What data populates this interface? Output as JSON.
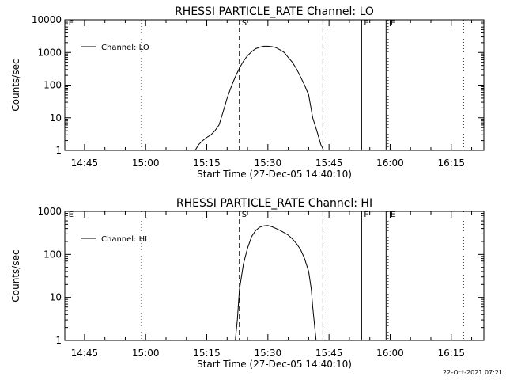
{
  "footer": {
    "timestamp": "22-Oct-2021 07:21"
  },
  "chart_data": [
    {
      "type": "line",
      "title": "RHESSI PARTICLE_RATE Channel: LO",
      "xlabel": "Start Time (27-Dec-05 14:40:10)",
      "ylabel": "Counts/sec",
      "y_scale": "log",
      "ylim": [
        1,
        10000
      ],
      "y_ticks": [
        {
          "value": 1,
          "label": "1"
        },
        {
          "value": 10,
          "label": "10"
        },
        {
          "value": 100,
          "label": "100"
        },
        {
          "value": 1000,
          "label": "1000"
        },
        {
          "value": 10000,
          "label": "10000"
        }
      ],
      "xlim": [
        "14:40:10",
        "16:23:00"
      ],
      "x_ticks": [
        "14:45",
        "15:00",
        "15:15",
        "15:30",
        "15:45",
        "16:00",
        "16:15"
      ],
      "legend": {
        "placement": "top-left",
        "entries": [
          "Channel: LO"
        ]
      },
      "series": [
        {
          "name": "Channel: LO",
          "x": [
            "15:12:10",
            "15:13:00",
            "15:14:00",
            "15:15:00",
            "15:16:00",
            "15:17:00",
            "15:18:00",
            "15:19:00",
            "15:20:00",
            "15:21:00",
            "15:22:00",
            "15:23:00",
            "15:24:00",
            "15:25:00",
            "15:26:00",
            "15:27:00",
            "15:28:00",
            "15:29:00",
            "15:30:00",
            "15:31:00",
            "15:32:00",
            "15:33:00",
            "15:34:00",
            "15:35:00",
            "15:36:00",
            "15:37:00",
            "15:38:00",
            "15:39:00",
            "15:40:00",
            "15:41:00",
            "15:42:00",
            "15:43:00",
            "15:43:40"
          ],
          "values": [
            1,
            1.5,
            2,
            2.5,
            3,
            4,
            6,
            15,
            40,
            90,
            180,
            330,
            540,
            800,
            1050,
            1300,
            1450,
            1550,
            1550,
            1500,
            1400,
            1200,
            1000,
            700,
            500,
            320,
            180,
            100,
            50,
            10,
            4,
            1.5,
            1
          ]
        }
      ],
      "annotations": [
        {
          "type": "vline",
          "style": "dotted",
          "x": "14:59:00",
          "label": ""
        },
        {
          "type": "vline",
          "style": "dashed",
          "x": "15:23:00",
          "label": "S"
        },
        {
          "type": "vline",
          "style": "dashed",
          "x": "15:43:30",
          "label": ""
        },
        {
          "type": "vline",
          "style": "solid",
          "x": "15:53:00",
          "label": "F"
        },
        {
          "type": "vline",
          "style": "solid",
          "x": "15:59:00",
          "label": ""
        },
        {
          "type": "vline",
          "style": "dotted",
          "x": "15:59:30",
          "label": "E"
        },
        {
          "type": "vline",
          "style": "dotted",
          "x": "16:18:00",
          "label": ""
        },
        {
          "type": "text",
          "x": "14:40:30",
          "label": "E"
        }
      ]
    },
    {
      "type": "line",
      "title": "RHESSI PARTICLE_RATE Channel: HI",
      "xlabel": "Start Time (27-Dec-05 14:40:10)",
      "ylabel": "Counts/sec",
      "y_scale": "log",
      "ylim": [
        1,
        1000
      ],
      "y_ticks": [
        {
          "value": 1,
          "label": "1"
        },
        {
          "value": 10,
          "label": "10"
        },
        {
          "value": 100,
          "label": "100"
        },
        {
          "value": 1000,
          "label": "1000"
        }
      ],
      "xlim": [
        "14:40:10",
        "16:23:00"
      ],
      "x_ticks": [
        "14:45",
        "15:00",
        "15:15",
        "15:30",
        "15:45",
        "16:00",
        "16:15"
      ],
      "legend": {
        "placement": "top-left",
        "entries": [
          "Channel: HI"
        ]
      },
      "series": [
        {
          "name": "Channel: HI",
          "x": [
            "15:22:00",
            "15:22:30",
            "15:23:00",
            "15:24:00",
            "15:25:00",
            "15:26:00",
            "15:27:00",
            "15:28:00",
            "15:29:00",
            "15:30:00",
            "15:31:00",
            "15:32:00",
            "15:33:00",
            "15:34:00",
            "15:35:00",
            "15:36:00",
            "15:37:00",
            "15:38:00",
            "15:39:00",
            "15:40:00",
            "15:40:40",
            "15:41:00",
            "15:41:30",
            "15:41:50"
          ],
          "values": [
            1,
            3,
            15,
            60,
            140,
            260,
            360,
            430,
            460,
            470,
            440,
            400,
            360,
            320,
            280,
            230,
            180,
            130,
            80,
            40,
            15,
            6,
            2,
            1
          ]
        }
      ],
      "annotations": [
        {
          "type": "vline",
          "style": "dotted",
          "x": "14:59:00",
          "label": ""
        },
        {
          "type": "vline",
          "style": "dashed",
          "x": "15:23:00",
          "label": "S"
        },
        {
          "type": "vline",
          "style": "dashed",
          "x": "15:43:30",
          "label": ""
        },
        {
          "type": "vline",
          "style": "solid",
          "x": "15:53:00",
          "label": "F"
        },
        {
          "type": "vline",
          "style": "solid",
          "x": "15:59:00",
          "label": ""
        },
        {
          "type": "vline",
          "style": "dotted",
          "x": "15:59:30",
          "label": "E"
        },
        {
          "type": "vline",
          "style": "dotted",
          "x": "16:18:00",
          "label": ""
        },
        {
          "type": "text",
          "x": "14:40:30",
          "label": "E"
        }
      ]
    }
  ]
}
